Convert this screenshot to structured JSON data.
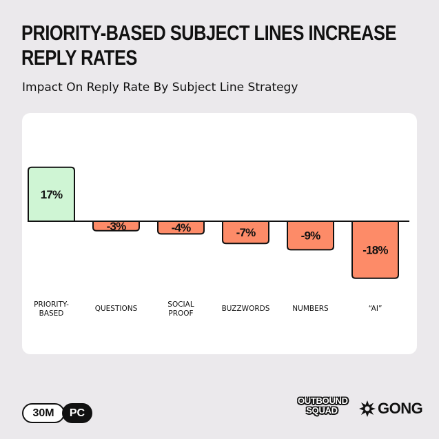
{
  "header": {
    "title": "PRIORITY-BASED SUBJECT LINES INCREASE REPLY RATES",
    "subtitle": "Impact On Reply Rate By Subject Line Strategy"
  },
  "chart_data": {
    "type": "bar",
    "title": "PRIORITY-BASED SUBJECT LINES INCREASE REPLY RATES",
    "subtitle": "Impact On Reply Rate By Subject Line Strategy",
    "categories": [
      [
        "PRIORITY-",
        "BASED"
      ],
      [
        "QUESTIONS"
      ],
      [
        "SOCIAL",
        "PROOF"
      ],
      [
        "BUZZWORDS"
      ],
      [
        "NUMBERS"
      ],
      [
        "“AI”"
      ]
    ],
    "values": [
      17,
      -3,
      -4,
      -7,
      -9,
      -18
    ],
    "value_labels": [
      "17%",
      "-3%",
      "-4%",
      "-7%",
      "-9%",
      "-18%"
    ],
    "ylim": [
      -20,
      19
    ],
    "grid": false,
    "colors": {
      "positive": "#cff5d4",
      "negative": "#fd8b68",
      "stroke": "#111111"
    }
  },
  "footer": {
    "badge_left": "30M",
    "badge_right": "PC",
    "brand_squad_line1": "OUTBOUND",
    "brand_squad_line2": "SQUAD",
    "brand_gong": "GONG"
  }
}
